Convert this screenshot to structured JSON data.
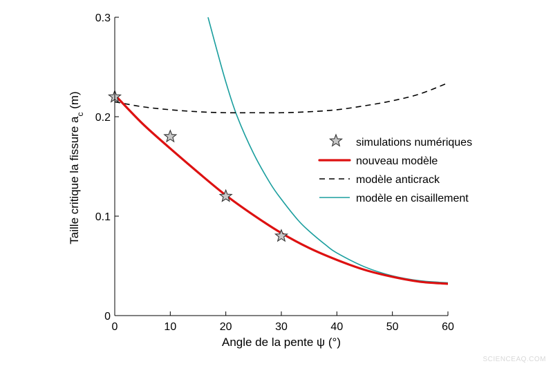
{
  "chart_data": {
    "type": "line",
    "xlabel": "Angle de la pente ψ (°)",
    "ylabel_main": "Taille critique la fissure a",
    "ylabel_sub": "c",
    "ylabel_unit": " (m)",
    "xlim": [
      0,
      60
    ],
    "ylim": [
      0,
      0.3
    ],
    "x_ticks": [
      "0",
      "10",
      "20",
      "30",
      "40",
      "50",
      "60"
    ],
    "y_ticks": [
      "0",
      "0.1",
      "0.2",
      "0.3"
    ],
    "grid": false,
    "legend_position": "right",
    "series": [
      {
        "name": "simulations numériques",
        "kind": "scatter",
        "marker": "star",
        "color": "#c8c8c8",
        "x": [
          0,
          10,
          20,
          30
        ],
        "y": [
          0.22,
          0.18,
          0.12,
          0.08
        ]
      },
      {
        "name": "nouveau modèle",
        "kind": "line",
        "style": "solid-thick",
        "color": "#dd1111",
        "x": [
          0,
          5,
          10,
          15,
          20,
          25,
          30,
          35,
          40,
          45,
          50,
          55,
          60
        ],
        "y": [
          0.222,
          0.193,
          0.168,
          0.144,
          0.121,
          0.101,
          0.083,
          0.068,
          0.056,
          0.046,
          0.039,
          0.034,
          0.032
        ]
      },
      {
        "name": "modèle anticrack",
        "kind": "line",
        "style": "dashed",
        "color": "#000000",
        "x": [
          0,
          5,
          10,
          15,
          20,
          25,
          30,
          35,
          40,
          45,
          50,
          55,
          60
        ],
        "y": [
          0.215,
          0.21,
          0.207,
          0.205,
          0.204,
          0.204,
          0.204,
          0.205,
          0.207,
          0.211,
          0.216,
          0.223,
          0.234
        ]
      },
      {
        "name": "modèle en cisaillement",
        "kind": "line",
        "style": "solid-thin",
        "color": "#1a9e9e",
        "x": [
          16.8,
          18,
          20,
          22,
          25,
          28,
          30,
          33,
          35,
          38,
          40,
          45,
          50,
          55,
          60
        ],
        "y": [
          0.3,
          0.275,
          0.235,
          0.201,
          0.163,
          0.133,
          0.117,
          0.096,
          0.085,
          0.071,
          0.063,
          0.049,
          0.04,
          0.035,
          0.033
        ]
      }
    ]
  },
  "watermark": "SCIENCEAQ.COM"
}
